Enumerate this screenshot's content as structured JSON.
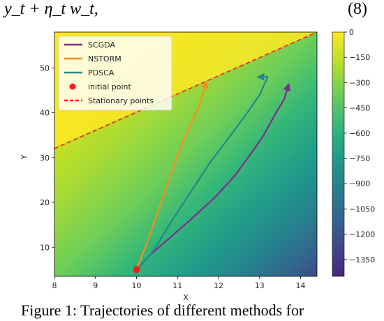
{
  "header": {
    "equation": "y_t + η_t w_t,",
    "equation_number": "(8)"
  },
  "caption": {
    "text": "Figure 1: Trajectories of different methods for"
  },
  "chart_data": {
    "type": "line",
    "title": "",
    "xlabel": "X",
    "ylabel": "Y",
    "xlim": [
      8,
      14.4
    ],
    "ylim": [
      3.5,
      58
    ],
    "xticks": [
      8,
      9,
      10,
      11,
      12,
      13,
      14
    ],
    "yticks": [
      10,
      20,
      30,
      40,
      50
    ],
    "grid": false,
    "legend_position": "top-left",
    "background": {
      "type": "heatmap",
      "colormap": "viridis",
      "colorbar_ticks": [
        0,
        -150,
        -300,
        -450,
        -600,
        -750,
        -900,
        -1050,
        -1200,
        -1350
      ],
      "colorbar_range": [
        -1450,
        0
      ]
    },
    "series": [
      {
        "name": "SCGDA",
        "color": "#7b2d8e",
        "x": [
          10.0,
          10.3,
          10.8,
          11.3,
          11.9,
          12.4,
          12.8,
          13.1,
          13.4,
          13.6,
          13.7
        ],
        "y": [
          5.0,
          8.0,
          12.0,
          16.0,
          21.0,
          26.0,
          31.0,
          35.0,
          40.0,
          43.0,
          46.0
        ]
      },
      {
        "name": "NSTORM",
        "color": "#ff8c1a",
        "x": [
          10.0,
          10.3,
          10.6,
          10.9,
          11.2,
          11.5,
          11.7
        ],
        "y": [
          5.0,
          12.0,
          20.0,
          28.0,
          35.0,
          41.0,
          46.5
        ]
      },
      {
        "name": "PDSCA",
        "color": "#24878e",
        "x": [
          10.0,
          10.4,
          10.8,
          11.3,
          11.8,
          12.3,
          12.7,
          13.0,
          13.2,
          13.0
        ],
        "y": [
          5.0,
          9.0,
          15.0,
          22.0,
          29.0,
          35.0,
          40.0,
          44.0,
          48.0,
          48.0
        ]
      },
      {
        "name": "initial point",
        "color": "#ff1a1a",
        "marker": "dot",
        "x": [
          10.0
        ],
        "y": [
          5.0
        ]
      },
      {
        "name": "Stationary points",
        "color": "#ff1a1a",
        "line": "dashed",
        "x": [
          8.0,
          14.4
        ],
        "y": [
          32.0,
          58.0
        ]
      }
    ]
  }
}
